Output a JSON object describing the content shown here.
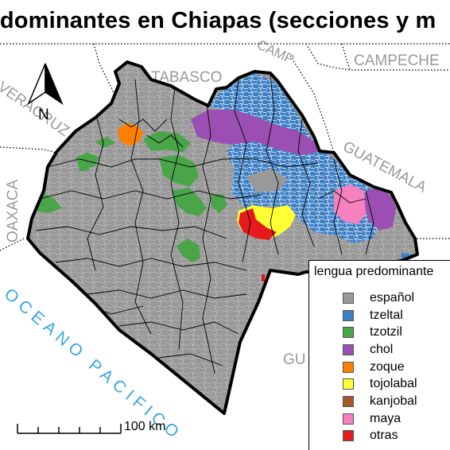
{
  "title": "redominantes en Chiapas (secciones y m",
  "regions": {
    "tabasco": "TABASCO",
    "campeche": "CAMPECHE",
    "camp_partial": "CAMP",
    "guatemala": "GUATEMALA",
    "veracruz": "VERACRUZ",
    "oaxaca": "OAXACA",
    "ocean": "OCEANO PACIFICO",
    "gu_partial": "GU"
  },
  "north_arrow": {
    "label": "N"
  },
  "scale_bar": {
    "label": "100 km"
  },
  "legend": {
    "title": "lengua predominante",
    "items": [
      {
        "label": "español",
        "color": "#999999"
      },
      {
        "label": "tzeltal",
        "color": "#3d7fc4"
      },
      {
        "label": "tzotzil",
        "color": "#4aa448"
      },
      {
        "label": "chol",
        "color": "#9b4fb2"
      },
      {
        "label": "zoque",
        "color": "#ff8000"
      },
      {
        "label": "tojolabal",
        "color": "#ffff33"
      },
      {
        "label": "kanjobal",
        "color": "#a65628"
      },
      {
        "label": "maya",
        "color": "#f781bf"
      },
      {
        "label": "otras",
        "color": "#e41a1c"
      }
    ]
  }
}
